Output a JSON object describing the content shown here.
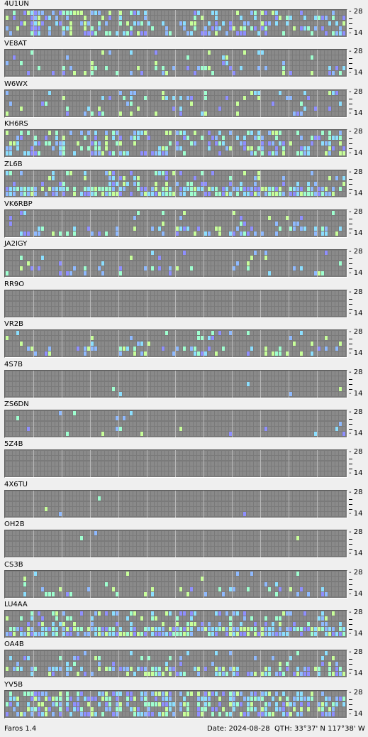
{
  "app_name": "Faros 1.4",
  "date_text": "Date: 2024-08-28",
  "qth_text": "QTH: 33°37' N  117°38' W",
  "scale": {
    "top": "28",
    "bottom": "14"
  },
  "colors": {
    "background": "#efefef",
    "empty_cell": "#8a8a8a",
    "grid_line": "#7a7a7a",
    "hour_line": "#b8b8b8",
    "signal_weak": "#8fbaff",
    "signal_medium": "#8cdfff",
    "signal_strong": "#9fffd0",
    "signal_very_strong": "#c8ff9a",
    "signal_violet": "#8f8fff"
  },
  "beacons": [
    {
      "callsign": "4U1UN",
      "density": 0.35,
      "bias": "mixed"
    },
    {
      "callsign": "VE8AT",
      "density": 0.14,
      "bias": "low"
    },
    {
      "callsign": "W6WX",
      "density": 0.16,
      "bias": "mixed"
    },
    {
      "callsign": "KH6RS",
      "density": 0.42,
      "bias": "mixed"
    },
    {
      "callsign": "ZL6B",
      "density": 0.45,
      "bias": "low"
    },
    {
      "callsign": "VK6RBP",
      "density": 0.15,
      "bias": "low"
    },
    {
      "callsign": "JA2IGY",
      "density": 0.1,
      "bias": "low"
    },
    {
      "callsign": "RR9O",
      "density": 0.0,
      "bias": "none"
    },
    {
      "callsign": "VR2B",
      "density": 0.17,
      "bias": "low"
    },
    {
      "callsign": "4S7B",
      "density": 0.01,
      "bias": "none"
    },
    {
      "callsign": "ZS6DN",
      "density": 0.07,
      "bias": "low"
    },
    {
      "callsign": "5Z4B",
      "density": 0.0,
      "bias": "none"
    },
    {
      "callsign": "4X6TU",
      "density": 0.005,
      "bias": "none"
    },
    {
      "callsign": "OH2B",
      "density": 0.005,
      "bias": "none"
    },
    {
      "callsign": "CS3B",
      "density": 0.1,
      "bias": "low"
    },
    {
      "callsign": "LU4AA",
      "density": 0.5,
      "bias": "low"
    },
    {
      "callsign": "OA4B",
      "density": 0.3,
      "bias": "low"
    },
    {
      "callsign": "YV5B",
      "density": 0.55,
      "bias": "mixed"
    }
  ]
}
